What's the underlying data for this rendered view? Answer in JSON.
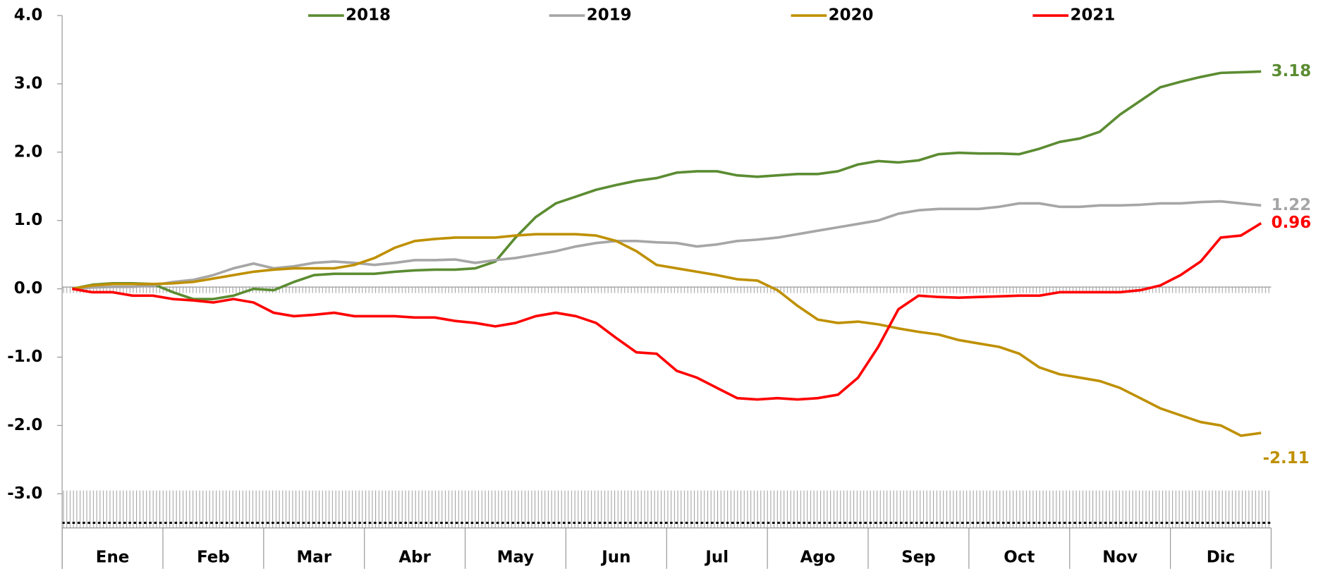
{
  "chart_data": {
    "type": "line",
    "categories": [
      null,
      null,
      "Ene",
      null,
      null,
      null,
      null,
      "Feb",
      null,
      null,
      null,
      null,
      "Mar",
      null,
      null,
      null,
      null,
      "Abr",
      null,
      null,
      null,
      null,
      "May",
      null,
      null,
      null,
      null,
      "Jun",
      null,
      null,
      null,
      null,
      "Jul",
      null,
      null,
      null,
      null,
      "Ago",
      null,
      null,
      null,
      null,
      "Sep",
      null,
      null,
      null,
      null,
      "Oct",
      null,
      null,
      null,
      null,
      "Nov",
      null,
      null,
      null,
      null,
      "Dic",
      null,
      null
    ],
    "series": [
      {
        "name": "2018",
        "color": "#5b8c32",
        "values": [
          0.0,
          0.06,
          0.08,
          0.08,
          0.07,
          -0.05,
          -0.15,
          -0.15,
          -0.1,
          0.0,
          -0.02,
          0.1,
          0.2,
          0.22,
          0.22,
          0.22,
          0.25,
          0.27,
          0.28,
          0.28,
          0.3,
          0.4,
          0.75,
          1.05,
          1.25,
          1.35,
          1.45,
          1.52,
          1.58,
          1.62,
          1.7,
          1.72,
          1.72,
          1.66,
          1.64,
          1.66,
          1.68,
          1.68,
          1.72,
          1.82,
          1.87,
          1.85,
          1.88,
          1.97,
          1.99,
          1.98,
          1.98,
          1.97,
          2.05,
          2.15,
          2.2,
          2.3,
          2.55,
          2.75,
          2.95,
          3.03,
          3.1,
          3.16,
          3.17,
          3.18
        ]
      },
      {
        "name": "2019",
        "color": "#a6a6a6",
        "values": [
          0.0,
          0.02,
          0.03,
          0.03,
          0.05,
          0.1,
          0.13,
          0.2,
          0.3,
          0.37,
          0.3,
          0.33,
          0.38,
          0.4,
          0.38,
          0.35,
          0.38,
          0.42,
          0.42,
          0.43,
          0.38,
          0.42,
          0.45,
          0.5,
          0.55,
          0.62,
          0.67,
          0.7,
          0.7,
          0.68,
          0.67,
          0.62,
          0.65,
          0.7,
          0.72,
          0.75,
          0.8,
          0.85,
          0.9,
          0.95,
          1.0,
          1.1,
          1.15,
          1.17,
          1.17,
          1.17,
          1.2,
          1.25,
          1.25,
          1.2,
          1.2,
          1.22,
          1.22,
          1.23,
          1.25,
          1.25,
          1.27,
          1.28,
          1.25,
          1.22
        ]
      },
      {
        "name": "2020",
        "color": "#bf9000",
        "values": [
          0.0,
          0.05,
          0.07,
          0.07,
          0.07,
          0.08,
          0.1,
          0.15,
          0.2,
          0.25,
          0.28,
          0.3,
          0.3,
          0.3,
          0.35,
          0.45,
          0.6,
          0.7,
          0.73,
          0.75,
          0.75,
          0.75,
          0.78,
          0.8,
          0.8,
          0.8,
          0.78,
          0.7,
          0.55,
          0.35,
          0.3,
          0.25,
          0.2,
          0.14,
          0.12,
          -0.02,
          -0.25,
          -0.45,
          -0.5,
          -0.48,
          -0.52,
          -0.58,
          -0.63,
          -0.67,
          -0.75,
          -0.8,
          -0.85,
          -0.95,
          -1.15,
          -1.25,
          -1.3,
          -1.35,
          -1.45,
          -1.6,
          -1.75,
          -1.85,
          -1.95,
          -2.0,
          -2.15,
          -2.11
        ]
      },
      {
        "name": "2021",
        "color": "#ff0000",
        "values": [
          0.0,
          -0.05,
          -0.05,
          -0.1,
          -0.1,
          -0.15,
          -0.17,
          -0.2,
          -0.15,
          -0.2,
          -0.35,
          -0.4,
          -0.38,
          -0.35,
          -0.4,
          -0.4,
          -0.4,
          -0.42,
          -0.42,
          -0.47,
          -0.5,
          -0.55,
          -0.5,
          -0.4,
          -0.35,
          -0.4,
          -0.5,
          -0.72,
          -0.93,
          -0.95,
          -1.2,
          -1.3,
          -1.45,
          -1.6,
          -1.62,
          -1.6,
          -1.62,
          -1.6,
          -1.55,
          -1.3,
          -0.85,
          -0.3,
          -0.1,
          -0.12,
          -0.13,
          -0.12,
          -0.11,
          -0.1,
          -0.1,
          -0.05,
          -0.05,
          -0.05,
          -0.05,
          -0.02,
          0.05,
          0.2,
          0.4,
          0.75,
          0.78,
          0.96
        ]
      }
    ],
    "ylim": [
      -3.5,
      4
    ],
    "yticks": [
      {
        "value": -3,
        "label": "-3.0"
      },
      {
        "value": -2,
        "label": "-2.0"
      },
      {
        "value": -1,
        "label": "-1.0"
      },
      {
        "value": 0,
        "label": "0.0"
      },
      {
        "value": 1,
        "label": "1.0"
      },
      {
        "value": 2,
        "label": "2.0"
      },
      {
        "value": 3,
        "label": "3.0"
      },
      {
        "value": 4,
        "label": "4.0"
      }
    ],
    "legend": "top",
    "grid": false
  }
}
